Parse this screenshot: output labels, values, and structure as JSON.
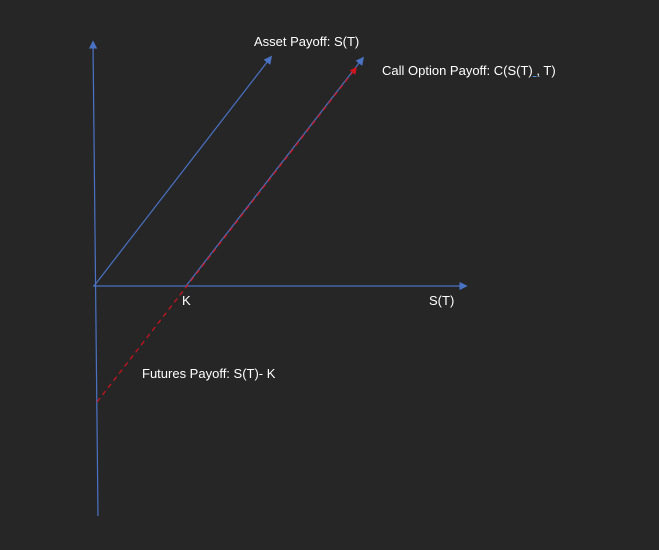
{
  "diagram": {
    "labels": {
      "asset_payoff": "Asset Payoff: S(T)",
      "call_payoff_prefix": "Call Option Payoff: C(S(T)",
      "call_payoff_sep": " ,",
      "call_payoff_suffix": " T)",
      "futures_payoff": "Futures Payoff: S(T)- K",
      "strike": "K",
      "x_axis": "S(T)"
    },
    "colors": {
      "background": "#262626",
      "axis": "#4a72c4",
      "asset_line": "#4a72c4",
      "call_line": "#4a72c4",
      "futures_line": "#c0141e",
      "text": "#ffffff"
    }
  }
}
